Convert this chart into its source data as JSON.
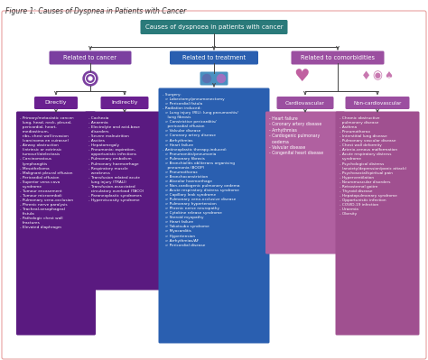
{
  "title": "Figure 1: Causes of Dyspnea in Patients with Cancer",
  "root_text": "Causes of dyspnoea in patients with cancer",
  "root_color": "#2a7a7a",
  "root_text_color": "#ffffff",
  "cancer_color": "#7b3fa0",
  "treatment_color": "#2a5fb0",
  "comorbidities_color": "#9b4fa0",
  "directly_label_color": "#6a2090",
  "indirectly_label_color": "#6a2090",
  "directly_box_color": "#5a1a80",
  "indirectly_box_color": "#5a1a80",
  "cardiovascular_label_color": "#9b4fa0",
  "noncardiovascular_label_color": "#9b4fa0",
  "cardiovascular_box_color": "#b060a0",
  "noncardiovascular_box_color": "#a05090",
  "bg_color": "#ffffff",
  "border_color": "#e8a0a0",
  "directly_items": "- Primary/metastatic cancer:\n  lung, head, neck, pleural,\n  pericardial, heart,\n  mediastinum,\n  ribs, chest wall invasion\n  (carcinoma en cuirasse)\n- Airway obstruction\n  (intrinsic or extrinsic\n  tumour)/atelectasis\n- Carcinomatous\n  lymphangitis\n- Mesothelioma\n- Malignant pleural effusion\n- Pericardial effusion\n- Superior vena cava\n  syndrome\n- Tumour encasement\n- Tumour microemboli\n- Pulmonary veno-occlusion\n- Phrenic nerve paralysis\n- Tracheal-oesophageal\n  fistula\n- Pathologic chest wall\n  fractures\n- Elevated diaphragm",
  "indirectly_items": "- Cachexia\n- Anaemia\n- Electrolyte and acid-base\n  disorders\n- Severe malnutrition\n- Ascites\n- Hepatomegaly\n- Pneumonia: aspiration,\n  opportunistic infections\n- Pulmonary embolism\n- Pulmonary haemorrhage\n- Respiratory muscle\n  weakness\n- Transfusion related acute\n  lung injury (TRALI)\n- Transfusion-associated\n  circulatory overload (TACO)\n- Paraneoplastic syndromes\n- Hyperviscosity syndrome",
  "treatment_items": "- Surgery:\n  > Lobectomy/pneumonectomy\n  > Pericardial fistula\n- Radiation induced:\n  > Lung injury (RIL): lung pneumonitis/\n    lung fibrosis\n  > Constrictive pericarditis/\n    pericardial effusion\n  > Valvular disease\n  > Coronary artery disease\n  > Arrhythmias\n  > Heart failure\n- Antineoplastic therapy-induced:\n  > Pneumonitis/pneumonia\n  > Pulmonary fibrosis\n  > Bronchiolitis obliterans organising\n    pneumonia (BOOP)\n  > Pneumothorax\n  > Bronchoconstriction\n  > Alveolar haemorrhage\n  > Non-cardiogenic pulmonary oedema\n  > Acute respiratory distress syndrome\n  > Capillary leak syndrome\n  > Pulmonary veno-occlusive disease\n  > Pulmonary hypertension\n  > Phrenic nerve neuropathy\n  > Cytokine release syndrome\n  > Steroid myopathy\n  > Heart failure\n  > Takotsubo syndrome\n  > Myocarditis\n  > Hypertension\n  > Arrhythmias/AF\n  > Pericardial disease",
  "cardiovascular_items": "- Heart failure\n- Coronary artery disease\n- Arrhythmias\n- Cardiogenic pulmonary\n  oedema\n- Valvular disease\n- Congenital heart disease",
  "noncardiovascular_items": "- Chronic obstructive\n  pulmonary disease\n- Asthma\n- Pneumothorax\n- Interstitial lung disease\n- Pulmonary vascular disease\n- Chest wall deformity\n- Arterio-venous malformation\n- Acute respiratory distress\n  syndrome\n- Psychological distress\n  (anxiety/depression/panic attack)\n- Psychosocial/spiritual pain\n- Hyperventilation\n- Neuromuscular disorders\n- Retrosternal goitre\n- Thyroid disease\n- Hepatopulmonary syndrome\n- Opportunistic infection\n- COVID-19 infection\n- Uraemia\n- Obesity"
}
